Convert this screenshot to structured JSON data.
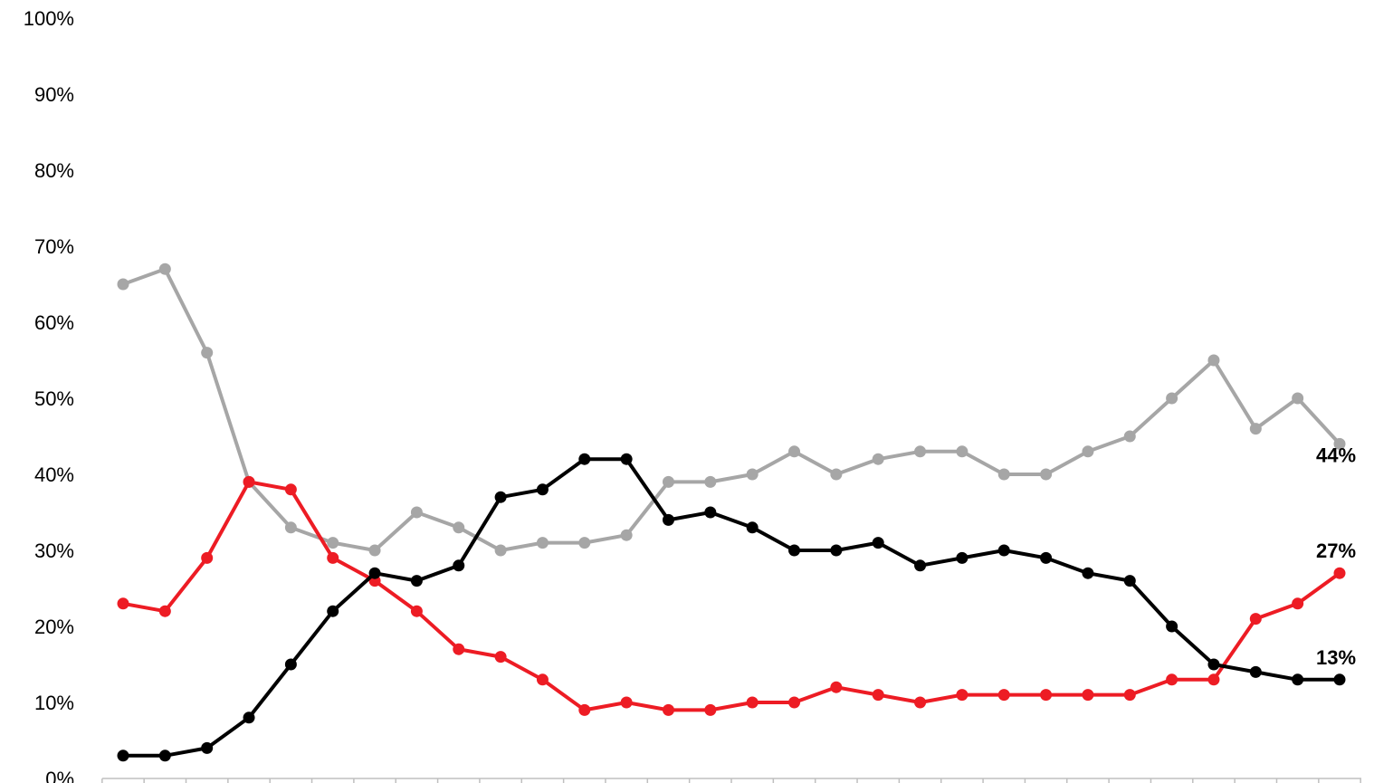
{
  "chart_data": {
    "type": "line",
    "x": [
      1,
      2,
      3,
      4,
      5,
      6,
      7,
      8,
      9,
      10,
      11,
      12,
      13,
      14,
      15,
      16,
      17,
      18,
      19,
      20,
      21,
      22,
      23,
      24,
      25,
      26,
      27,
      28,
      29,
      30
    ],
    "ylim": [
      0,
      100
    ],
    "yticks": [
      0,
      10,
      20,
      30,
      40,
      50,
      60,
      70,
      80,
      90,
      100
    ],
    "ytick_labels": [
      "0%",
      "10%",
      "20%",
      "30%",
      "40%",
      "50%",
      "60%",
      "70%",
      "80%",
      "90%",
      "100%"
    ],
    "grid": false,
    "legend": "none",
    "series": [
      {
        "color": "#a6a6a6",
        "values": [
          65,
          67,
          56,
          39,
          33,
          31,
          30,
          35,
          33,
          30,
          31,
          31,
          32,
          39,
          39,
          40,
          43,
          40,
          42,
          43,
          43,
          40,
          40,
          43,
          45,
          50,
          55,
          46,
          50,
          44
        ],
        "end_label": "44%"
      },
      {
        "color": "#ed1c24",
        "values": [
          23,
          22,
          29,
          39,
          38,
          29,
          26,
          22,
          17,
          16,
          13,
          9,
          10,
          9,
          9,
          10,
          10,
          12,
          11,
          10,
          11,
          11,
          11,
          11,
          11,
          13,
          13,
          21,
          23,
          27
        ],
        "end_label": "27%"
      },
      {
        "color": "#000000",
        "values": [
          3,
          3,
          4,
          8,
          15,
          22,
          27,
          26,
          28,
          37,
          38,
          42,
          42,
          34,
          35,
          33,
          30,
          30,
          31,
          28,
          29,
          30,
          29,
          27,
          26,
          20,
          15,
          14,
          13,
          13
        ],
        "end_label": "13%"
      }
    ]
  }
}
